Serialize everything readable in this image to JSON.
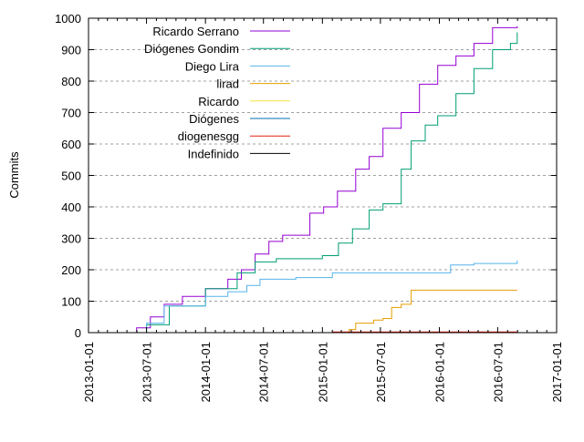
{
  "chart_data": {
    "type": "line",
    "title": "",
    "xlabel": "",
    "ylabel": "Commits",
    "ylim": [
      0,
      1000
    ],
    "xlim": [
      "2013-01-01",
      "2017-01-01"
    ],
    "yticks": [
      "0",
      "100",
      "200",
      "300",
      "400",
      "500",
      "600",
      "700",
      "800",
      "900",
      "1000"
    ],
    "xticks": [
      "2013-01-01",
      "2013-07-01",
      "2014-01-01",
      "2014-07-01",
      "2015-01-01",
      "2015-07-01",
      "2016-01-01",
      "2016-07-01",
      "2017-01-01"
    ],
    "grid": "horizontal dashed",
    "legend_placement": "top-left",
    "series": [
      {
        "name": "Ricardo Serrano",
        "color": "#9400d3",
        "points": [
          [
            "2013-04-04",
            0
          ],
          [
            "2013-05-31",
            15
          ],
          [
            "2013-07-13",
            50
          ],
          [
            "2013-08-25",
            90
          ],
          [
            "2013-10-21",
            115
          ],
          [
            "2014-01-01",
            140
          ],
          [
            "2014-03-12",
            170
          ],
          [
            "2014-04-23",
            200
          ],
          [
            "2014-06-05",
            250
          ],
          [
            "2014-07-18",
            290
          ],
          [
            "2014-08-30",
            310
          ],
          [
            "2014-11-23",
            380
          ],
          [
            "2015-01-05",
            400
          ],
          [
            "2015-02-17",
            450
          ],
          [
            "2015-04-15",
            520
          ],
          [
            "2015-05-27",
            560
          ],
          [
            "2015-07-09",
            650
          ],
          [
            "2015-09-04",
            700
          ],
          [
            "2015-10-31",
            790
          ],
          [
            "2015-12-27",
            850
          ],
          [
            "2016-02-22",
            880
          ],
          [
            "2016-04-18",
            920
          ],
          [
            "2016-06-15",
            970
          ],
          [
            "2016-08-31",
            975
          ]
        ]
      },
      {
        "name": "Diógenes Gondim",
        "color": "#009e73",
        "points": [
          [
            "2013-04-04",
            0
          ],
          [
            "2013-07-01",
            25
          ],
          [
            "2013-09-10",
            85
          ],
          [
            "2014-01-01",
            140
          ],
          [
            "2014-04-10",
            190
          ],
          [
            "2014-06-05",
            225
          ],
          [
            "2014-08-10",
            235
          ],
          [
            "2015-01-01",
            245
          ],
          [
            "2015-02-20",
            285
          ],
          [
            "2015-04-05",
            330
          ],
          [
            "2015-05-27",
            390
          ],
          [
            "2015-07-09",
            410
          ],
          [
            "2015-09-04",
            520
          ],
          [
            "2015-10-05",
            610
          ],
          [
            "2015-11-18",
            660
          ],
          [
            "2015-12-27",
            690
          ],
          [
            "2016-02-22",
            760
          ],
          [
            "2016-04-18",
            840
          ],
          [
            "2016-06-15",
            900
          ],
          [
            "2016-08-10",
            920
          ],
          [
            "2016-08-31",
            955
          ]
        ]
      },
      {
        "name": "Diego Lira",
        "color": "#56b4e9",
        "points": [
          [
            "2013-05-03",
            0
          ],
          [
            "2013-07-01",
            30
          ],
          [
            "2013-08-25",
            85
          ],
          [
            "2014-01-01",
            115
          ],
          [
            "2014-03-12",
            130
          ],
          [
            "2014-05-10",
            150
          ],
          [
            "2014-06-20",
            170
          ],
          [
            "2014-10-10",
            175
          ],
          [
            "2015-02-01",
            190
          ],
          [
            "2016-01-05",
            190
          ],
          [
            "2016-02-05",
            215
          ],
          [
            "2016-04-18",
            220
          ],
          [
            "2016-08-31",
            230
          ]
        ]
      },
      {
        "name": "lirad",
        "color": "#e69f00",
        "points": [
          [
            "2015-02-10",
            0
          ],
          [
            "2015-03-25",
            10
          ],
          [
            "2015-04-15",
            30
          ],
          [
            "2015-06-10",
            40
          ],
          [
            "2015-07-09",
            45
          ],
          [
            "2015-08-05",
            80
          ],
          [
            "2015-09-04",
            90
          ],
          [
            "2015-10-05",
            135
          ],
          [
            "2016-08-31",
            135
          ]
        ]
      },
      {
        "name": "Ricardo",
        "color": "#f0e442",
        "points": []
      },
      {
        "name": "Diógenes",
        "color": "#0072b2",
        "points": []
      },
      {
        "name": "diogenesgg",
        "color": "#e51e10",
        "points": [
          [
            "2015-02-01",
            2
          ],
          [
            "2016-08-31",
            2
          ]
        ]
      },
      {
        "name": "Indefinido",
        "color": "#000000",
        "points": []
      }
    ]
  }
}
